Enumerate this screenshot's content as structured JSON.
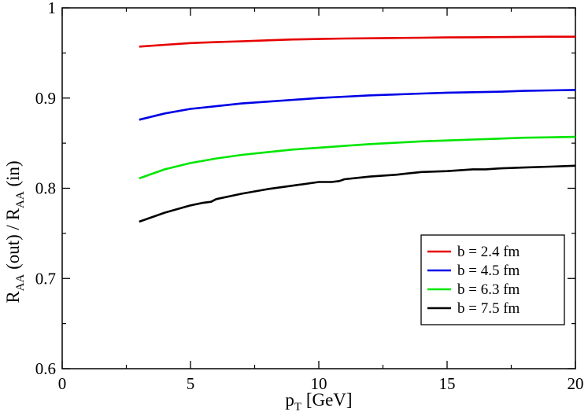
{
  "chart_data": {
    "type": "line",
    "xlabel": "p",
    "xlabel_sub": "T",
    "xlabel_unit": " [GeV]",
    "ylabel_parts": [
      {
        "text": "R",
        "sub": false
      },
      {
        "text": "AA",
        "sub": true
      },
      {
        "text": " (out) / R",
        "sub": false
      },
      {
        "text": "AA",
        "sub": true
      },
      {
        "text": " (in)",
        "sub": false
      }
    ],
    "xlim": [
      0,
      20
    ],
    "ylim": [
      0.6,
      1.0
    ],
    "xticks": [
      0,
      5,
      10,
      15,
      20
    ],
    "xtick_labels": [
      "0",
      "5",
      "10",
      "15",
      "20"
    ],
    "x_minor_step": 2.5,
    "yticks": [
      0.6,
      0.7,
      0.8,
      0.9,
      1.0
    ],
    "ytick_labels": [
      "0.6",
      "0.7",
      "0.8",
      "0.9",
      "1"
    ],
    "y_minor_step": 0.05,
    "grid": false,
    "legend_position": "lower-right",
    "series": [
      {
        "name": "b = 2.4 fm",
        "color": "#e60000",
        "x": [
          3,
          4,
          5,
          6,
          7,
          8,
          9,
          10,
          11,
          12,
          13,
          14,
          15,
          16,
          17,
          18,
          19,
          20
        ],
        "y": [
          0.957,
          0.959,
          0.961,
          0.962,
          0.963,
          0.964,
          0.965,
          0.9655,
          0.966,
          0.9663,
          0.9666,
          0.9669,
          0.9672,
          0.9674,
          0.9676,
          0.9678,
          0.968,
          0.968
        ]
      },
      {
        "name": "b = 4.5 fm",
        "color": "#0000e6",
        "x": [
          3,
          4,
          5,
          6,
          7,
          8,
          9,
          10,
          11,
          12,
          13,
          14,
          15,
          16,
          17,
          18,
          19,
          20
        ],
        "y": [
          0.876,
          0.883,
          0.888,
          0.891,
          0.894,
          0.896,
          0.898,
          0.9,
          0.9015,
          0.903,
          0.904,
          0.905,
          0.906,
          0.9065,
          0.907,
          0.908,
          0.9085,
          0.909
        ]
      },
      {
        "name": "b = 6.3 fm",
        "color": "#00e600",
        "x": [
          3,
          4,
          5,
          6,
          7,
          8,
          9,
          10,
          11,
          12,
          13,
          14,
          15,
          16,
          17,
          18,
          19,
          20
        ],
        "y": [
          0.811,
          0.821,
          0.828,
          0.833,
          0.837,
          0.84,
          0.843,
          0.845,
          0.847,
          0.849,
          0.8505,
          0.852,
          0.853,
          0.854,
          0.855,
          0.856,
          0.8565,
          0.857
        ]
      },
      {
        "name": "b = 7.5 fm",
        "color": "#000000",
        "x": [
          3,
          4,
          5,
          5.5,
          5.8,
          6,
          7,
          8,
          9,
          10,
          10.5,
          10.8,
          11,
          12,
          13,
          14,
          15,
          16,
          16.5,
          17,
          18,
          19,
          20
        ],
        "y": [
          0.763,
          0.773,
          0.781,
          0.784,
          0.785,
          0.788,
          0.794,
          0.799,
          0.803,
          0.807,
          0.807,
          0.808,
          0.81,
          0.813,
          0.815,
          0.818,
          0.819,
          0.821,
          0.821,
          0.822,
          0.823,
          0.824,
          0.825
        ]
      }
    ]
  }
}
